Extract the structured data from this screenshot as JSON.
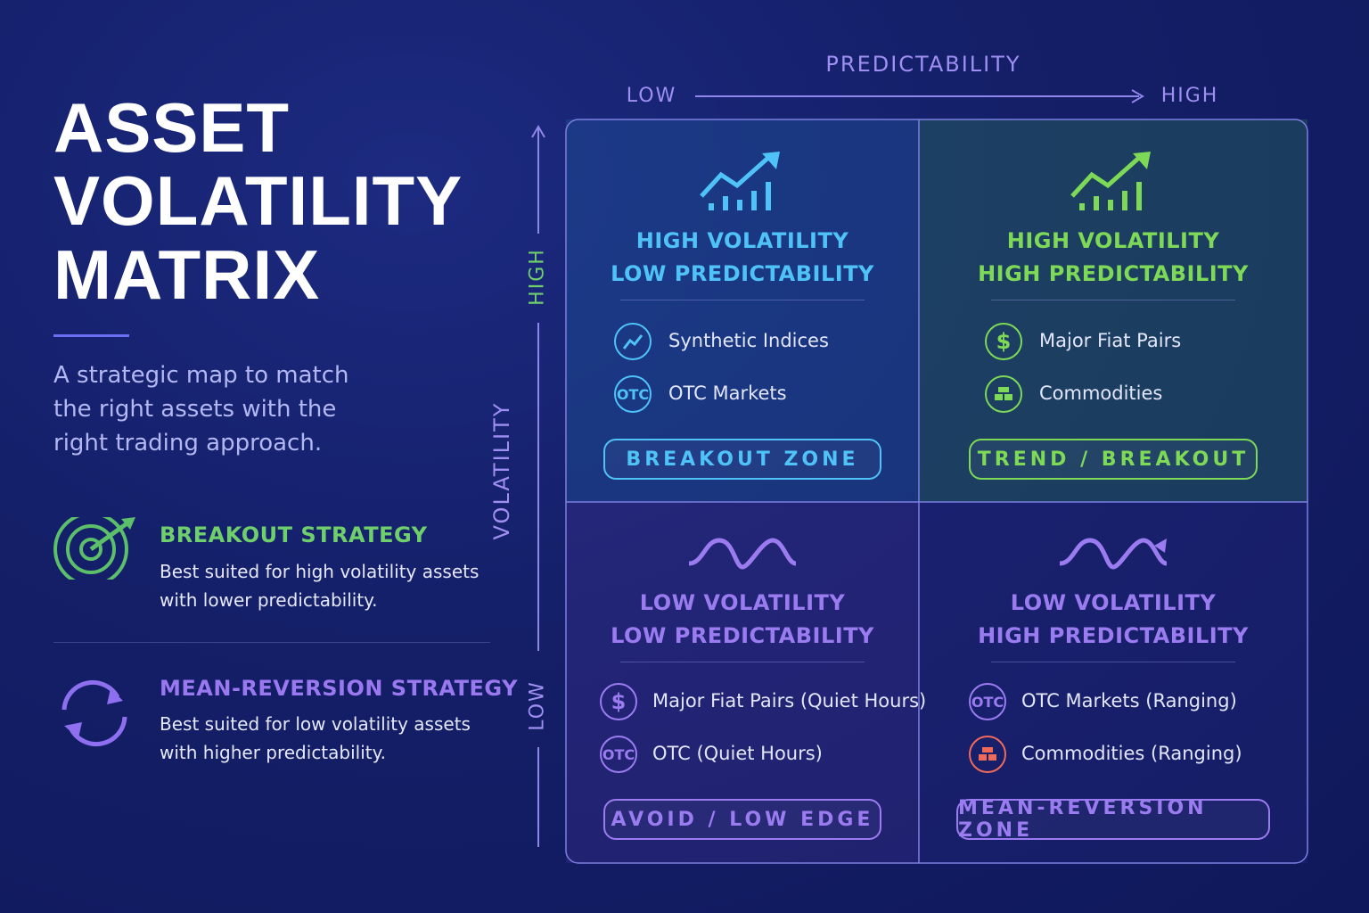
{
  "header": {
    "title_lines": [
      "ASSET",
      "VOLATILITY",
      "MATRIX"
    ],
    "subtitle": "A strategic map to match the right assets with the right trading approach."
  },
  "strategies": [
    {
      "title": "BREAKOUT STRATEGY",
      "description": "Best suited for high volatility assets with lower predictability."
    },
    {
      "title": "MEAN-REVERSION STRATEGY",
      "description": "Best suited for low volatility assets with higher predictability."
    }
  ],
  "x_axis": {
    "label": "PREDICTABILITY",
    "low": "LOW",
    "high": "HIGH"
  },
  "y_axis": {
    "label": "VOLATILITY",
    "low": "LOW",
    "high": "HIGH"
  },
  "quadrants": [
    {
      "title_lines": [
        "HIGH VOLATILITY",
        "LOW PREDICTABILITY"
      ],
      "items": [
        {
          "label": "Synthetic Indices"
        },
        {
          "badge": "OTC",
          "label": "OTC Markets"
        }
      ],
      "zone": "BREAKOUT ZONE"
    },
    {
      "title_lines": [
        "HIGH VOLATILITY",
        "HIGH PREDICTABILITY"
      ],
      "items": [
        {
          "badge": "$",
          "label": "Major Fiat Pairs"
        },
        {
          "label": "Commodities"
        }
      ],
      "zone": "TREND / BREAKOUT"
    },
    {
      "title_lines": [
        "LOW VOLATILITY",
        "LOW PREDICTABILITY"
      ],
      "items": [
        {
          "badge": "$",
          "label": "Major Fiat Pairs (Quiet Hours)"
        },
        {
          "badge": "OTC",
          "label": "OTC (Quiet Hours)"
        }
      ],
      "zone": "AVOID / LOW EDGE"
    },
    {
      "title_lines": [
        "LOW VOLATILITY",
        "HIGH PREDICTABILITY"
      ],
      "items": [
        {
          "badge": "OTC",
          "label": "OTC Markets (Ranging)"
        },
        {
          "label": "Commodities (Ranging)"
        }
      ],
      "zone": "MEAN-REVERSION ZONE"
    }
  ]
}
